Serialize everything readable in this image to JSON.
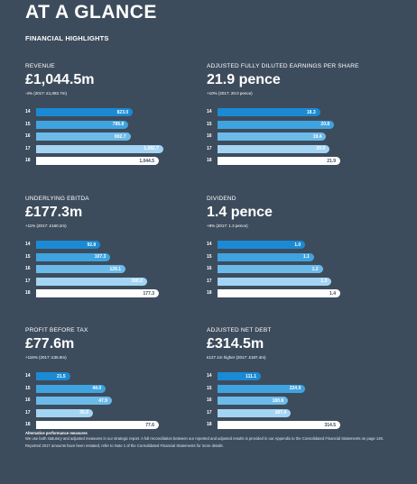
{
  "page_title": "AT A GLANCE",
  "section_title": "FINANCIAL HIGHLIGHTS",
  "bar_colors": [
    "#1a8ad4",
    "#3fa3e0",
    "#6bbae9",
    "#a3d4f3",
    "#ffffff"
  ],
  "panels": [
    {
      "label": "REVENUE",
      "value": "£1,044.5m",
      "compare": "-4% (2017: £1,082.7m)",
      "max": 1044.5,
      "bars": [
        {
          "year": "14",
          "value": 823.0,
          "text": "823.0"
        },
        {
          "year": "15",
          "value": 785.8,
          "text": "785.8"
        },
        {
          "year": "16",
          "value": 802.7,
          "text": "802.7"
        },
        {
          "year": "17",
          "value": 1082.7,
          "text": "1,082.7"
        },
        {
          "year": "18",
          "value": 1044.5,
          "text": "1,044.5"
        }
      ]
    },
    {
      "label": "ADJUSTED FULLY DILUTED EARNINGS PER SHARE",
      "value": "21.9 pence",
      "compare": "+10% (2017: 20.0 pence)",
      "max": 21.9,
      "bars": [
        {
          "year": "14",
          "value": 18.3,
          "text": "18.3"
        },
        {
          "year": "15",
          "value": 20.8,
          "text": "20.8"
        },
        {
          "year": "16",
          "value": 19.4,
          "text": "19.4"
        },
        {
          "year": "17",
          "value": 20.0,
          "text": "20.0"
        },
        {
          "year": "18",
          "value": 21.9,
          "text": "21.9"
        }
      ]
    },
    {
      "label": "UNDERLYING EBITDA",
      "value": "£177.3m",
      "compare": "+11% (2017: £160.2m)",
      "max": 177.3,
      "bars": [
        {
          "year": "14",
          "value": 92.8,
          "text": "92.8"
        },
        {
          "year": "15",
          "value": 107.3,
          "text": "107.3"
        },
        {
          "year": "16",
          "value": 129.1,
          "text": "129.1"
        },
        {
          "year": "17",
          "value": 160.2,
          "text": "160.2"
        },
        {
          "year": "18",
          "value": 177.3,
          "text": "177.3"
        }
      ]
    },
    {
      "label": "DIVIDEND",
      "value": "1.4 pence",
      "compare": "+8% (2017: 1.3 pence)",
      "max": 1.4,
      "bars": [
        {
          "year": "14",
          "value": 1.0,
          "text": "1.0"
        },
        {
          "year": "15",
          "value": 1.1,
          "text": "1.1"
        },
        {
          "year": "16",
          "value": 1.2,
          "text": "1.2"
        },
        {
          "year": "17",
          "value": 1.3,
          "text": "1.3"
        },
        {
          "year": "18",
          "value": 1.4,
          "text": "1.4"
        }
      ]
    },
    {
      "label": "PROFIT BEFORE TAX",
      "value": "£77.6m",
      "compare": "+116% (2017: £35.9m)",
      "max": 77.6,
      "bars": [
        {
          "year": "14",
          "value": 21.5,
          "text": "21.5"
        },
        {
          "year": "15",
          "value": 44.0,
          "text": "44.0"
        },
        {
          "year": "16",
          "value": 47.9,
          "text": "47.9"
        },
        {
          "year": "17",
          "value": 35.9,
          "text": "35.9"
        },
        {
          "year": "18",
          "value": 77.6,
          "text": "77.6"
        }
      ]
    },
    {
      "label": "ADJUSTED NET DEBT",
      "value": "£314.5m",
      "compare": "£127.1m higher (2017: £187.4m)",
      "max": 314.5,
      "bars": [
        {
          "year": "14",
          "value": 111.1,
          "text": "111.1"
        },
        {
          "year": "15",
          "value": 224.9,
          "text": "224.9"
        },
        {
          "year": "16",
          "value": 180.8,
          "text": "180.8"
        },
        {
          "year": "17",
          "value": 187.4,
          "text": "187.4"
        },
        {
          "year": "18",
          "value": 314.5,
          "text": "314.5"
        }
      ]
    }
  ],
  "footnote": {
    "heading": "Alternative performance measures",
    "body": "We use both statutory and adjusted measures in our strategic report. A full reconciliation between our reported and adjusted results is provided in our Appendix to the Consolidated Financial Statements on page 149.",
    "restated": "Reported 2017 amounts have been restated, refer to Note 1 of the Consolidated Financial Statements for more details."
  }
}
